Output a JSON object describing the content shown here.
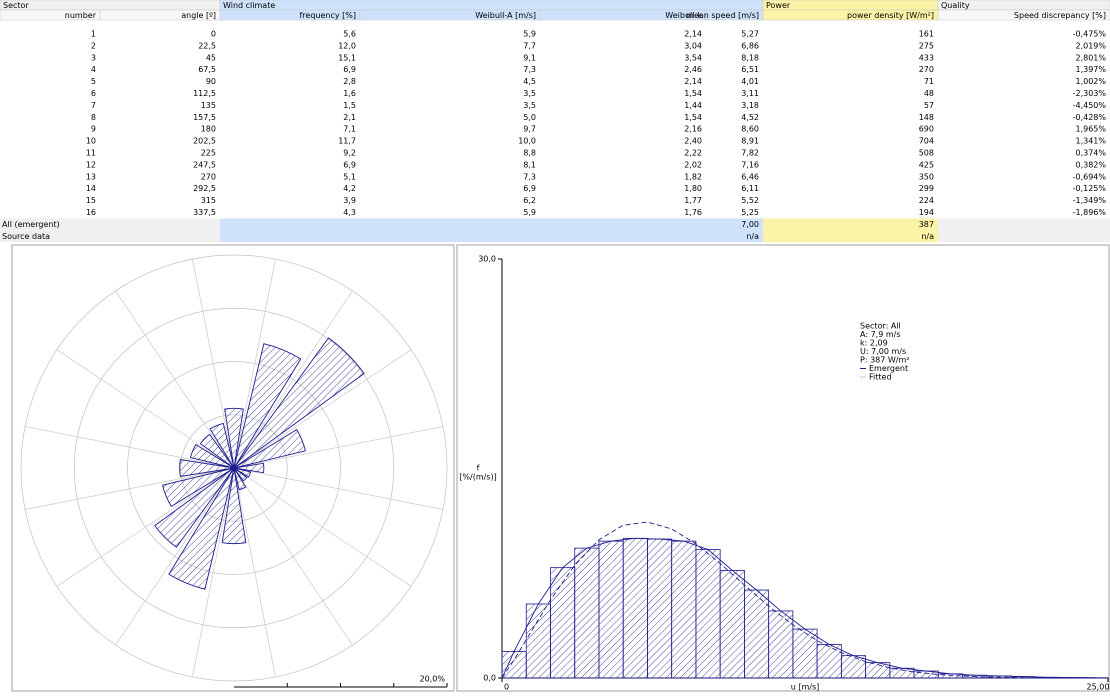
{
  "table": {
    "groups": [
      "Sector",
      "Wind climate",
      "Power",
      "Quality"
    ],
    "columns": [
      "number",
      "angle [º]",
      "frequency [%]",
      "Weibull-A [m/s]",
      "Weibull-k",
      "mean speed [m/s]",
      "power density [W/m²]",
      "Speed discrepancy [%]"
    ],
    "rows": [
      [
        "1",
        "0",
        "5,6",
        "5,9",
        "2,14",
        "5,27",
        "161",
        "-0,475%"
      ],
      [
        "2",
        "22,5",
        "12,0",
        "7,7",
        "3,04",
        "6,86",
        "275",
        "2,019%"
      ],
      [
        "3",
        "45",
        "15,1",
        "9,1",
        "3,54",
        "8,18",
        "433",
        "2,801%"
      ],
      [
        "4",
        "67,5",
        "6,9",
        "7,3",
        "2,46",
        "6,51",
        "270",
        "1,397%"
      ],
      [
        "5",
        "90",
        "2,8",
        "4,5",
        "2,14",
        "4,01",
        "71",
        "1,002%"
      ],
      [
        "6",
        "112,5",
        "1,6",
        "3,5",
        "1,54",
        "3,11",
        "48",
        "-2,303%"
      ],
      [
        "7",
        "135",
        "1,5",
        "3,5",
        "1,44",
        "3,18",
        "57",
        "-4,450%"
      ],
      [
        "8",
        "157,5",
        "2,1",
        "5,0",
        "1,54",
        "4,52",
        "148",
        "-0,428%"
      ],
      [
        "9",
        "180",
        "7,1",
        "9,7",
        "2,16",
        "8,60",
        "690",
        "1,965%"
      ],
      [
        "10",
        "202,5",
        "11,7",
        "10,0",
        "2,40",
        "8,91",
        "704",
        "1,341%"
      ],
      [
        "11",
        "225",
        "9,2",
        "8,8",
        "2,22",
        "7,82",
        "508",
        "0,374%"
      ],
      [
        "12",
        "247,5",
        "6,9",
        "8,1",
        "2,02",
        "7,16",
        "425",
        "0,382%"
      ],
      [
        "13",
        "270",
        "5,1",
        "7,3",
        "1,82",
        "6,46",
        "350",
        "-0,694%"
      ],
      [
        "14",
        "292,5",
        "4,2",
        "6,9",
        "1,80",
        "6,11",
        "299",
        "-0,125%"
      ],
      [
        "15",
        "315",
        "3,9",
        "6,2",
        "1,77",
        "5,52",
        "224",
        "-1,349%"
      ],
      [
        "16",
        "337,5",
        "4,3",
        "5,9",
        "1,76",
        "5,25",
        "194",
        "-1,896%"
      ]
    ],
    "footer": [
      {
        "label": "All (emergent)",
        "mean_speed": "7,00",
        "power_density": "387"
      },
      {
        "label": "Source data",
        "mean_speed": "n/a",
        "power_density": "n/a"
      }
    ]
  },
  "chart_data": [
    {
      "type": "rose",
      "angles": [
        0,
        22.5,
        45,
        67.5,
        90,
        112.5,
        135,
        157.5,
        180,
        202.5,
        225,
        247.5,
        270,
        292.5,
        315,
        337.5
      ],
      "values": [
        5.6,
        12.0,
        15.1,
        6.9,
        2.8,
        1.6,
        1.5,
        2.1,
        7.1,
        11.7,
        9.2,
        6.9,
        5.1,
        4.2,
        3.9,
        4.3
      ],
      "rlim": [
        0,
        20
      ],
      "rgrid": [
        5,
        10,
        15,
        20
      ],
      "rticks": [
        {
          "value": 20,
          "label": "20,0%"
        }
      ],
      "color": "#1c1c8f"
    },
    {
      "type": "histogram",
      "bins": [
        0,
        1,
        2,
        3,
        4,
        5,
        6,
        7,
        8,
        9,
        10,
        11,
        12,
        13,
        14,
        15,
        16,
        17,
        18,
        19,
        20,
        21,
        22,
        23,
        24,
        25
      ],
      "counts": [
        1.9,
        5.3,
        7.9,
        9.3,
        9.8,
        10.0,
        9.95,
        9.8,
        9.2,
        7.7,
        6.3,
        4.8,
        3.5,
        2.4,
        1.6,
        1.1,
        0.7,
        0.5,
        0.3,
        0.2,
        0.15,
        0.1,
        0.05,
        0.03,
        0.02
      ],
      "color": "#1c1c8f",
      "series": [
        {
          "name": "Emergent",
          "color": "#1c1c8f",
          "dashed": false,
          "x": [
            0,
            0.5,
            1.5,
            2.5,
            3.5,
            4.5,
            5.5,
            6.5,
            7.5,
            8.5,
            9.5,
            10.5,
            11.5,
            12.5,
            13.5,
            14.5,
            15.5,
            16.5,
            17.5,
            18.5,
            19.5,
            20.5,
            21.5,
            22.5,
            23.5,
            24.5
          ],
          "values": [
            0,
            1.9,
            5.3,
            7.9,
            9.3,
            9.8,
            10.0,
            9.95,
            9.8,
            9.2,
            7.7,
            6.3,
            4.8,
            3.5,
            2.4,
            1.6,
            1.1,
            0.7,
            0.5,
            0.3,
            0.2,
            0.15,
            0.1,
            0.05,
            0.03,
            0.02
          ]
        },
        {
          "name": "Fitted",
          "color": "#1c1c8f",
          "dashed": true,
          "x": [
            0,
            0.5,
            1,
            2,
            3,
            4,
            5,
            6,
            7,
            8,
            9,
            10,
            11,
            12,
            13,
            14,
            15,
            16,
            17,
            18,
            19,
            20,
            21,
            22,
            23,
            24,
            25
          ],
          "values": [
            0,
            1.3,
            2.74,
            5.6,
            8.07,
            9.9,
            10.94,
            11.17,
            10.67,
            9.61,
            8.2,
            6.66,
            5.15,
            3.8,
            2.68,
            1.81,
            1.17,
            0.73,
            0.43,
            0.25,
            0.14,
            0.07,
            0.04,
            0.02,
            0.01,
            0.005,
            0.002
          ]
        }
      ],
      "xlim": [
        0,
        25
      ],
      "ylim": [
        0,
        30
      ],
      "xticks": [
        0,
        {
          "value": 25,
          "label": "25,00"
        }
      ],
      "yticks": [
        {
          "value": 0,
          "label": "0,0"
        },
        {
          "value": 30,
          "label": "30,0"
        }
      ],
      "xlabel": "u [m/s]",
      "ylabel": [
        "f",
        "[%/(m/s)]"
      ],
      "info": [
        {
          "text": "Sector: All",
          "color": "#000000"
        },
        {
          "text": "A: 7,9 m/s",
          "color": "#b0b0b0"
        },
        {
          "text": "k: 2,09",
          "color": "#b0b0b0"
        },
        {
          "text": "U: 7,00 m/s",
          "color": "#000000"
        },
        {
          "text": "P: 387 W/m²",
          "color": "#000000"
        }
      ]
    }
  ]
}
